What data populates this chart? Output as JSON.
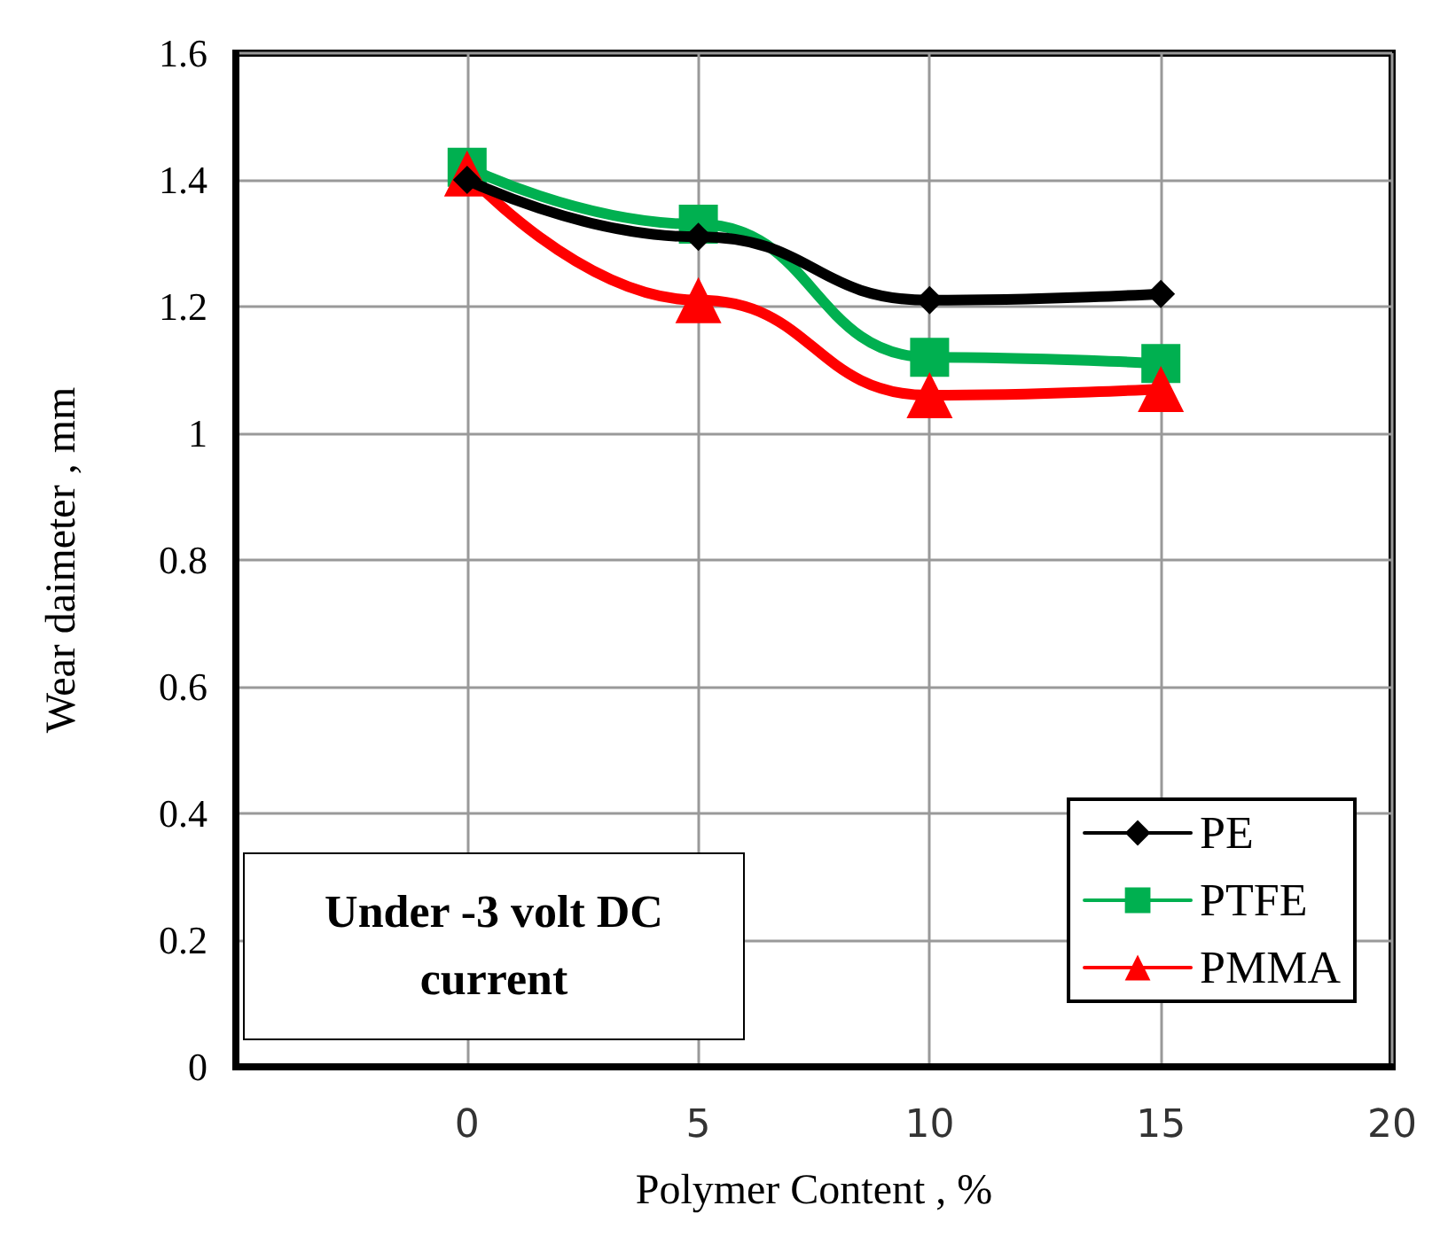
{
  "chart_data": {
    "type": "line",
    "xlabel": "Polymer Content , %",
    "ylabel": "Wear daimeter , mm",
    "x": [
      0,
      5,
      10,
      15
    ],
    "series": [
      {
        "name": "PE",
        "color": "#000000",
        "marker": "diamond",
        "values": [
          1.4,
          1.31,
          1.21,
          1.22
        ]
      },
      {
        "name": "PTFE",
        "color": "#00b050",
        "marker": "square",
        "values": [
          1.42,
          1.33,
          1.12,
          1.11
        ]
      },
      {
        "name": "PMMA",
        "color": "#ff0000",
        "marker": "triangle",
        "values": [
          1.41,
          1.21,
          1.06,
          1.07
        ]
      }
    ],
    "xlim": [
      -5,
      20
    ],
    "xticks": [
      0,
      5,
      10,
      15,
      20
    ],
    "ylim": [
      0,
      1.6
    ],
    "yticks": [
      0,
      0.2,
      0.4,
      0.6,
      0.8,
      1,
      1.2,
      1.4,
      1.6
    ],
    "grid": true,
    "legend": "bottom right",
    "annotations": [
      "Under -3 volt DC current"
    ]
  }
}
